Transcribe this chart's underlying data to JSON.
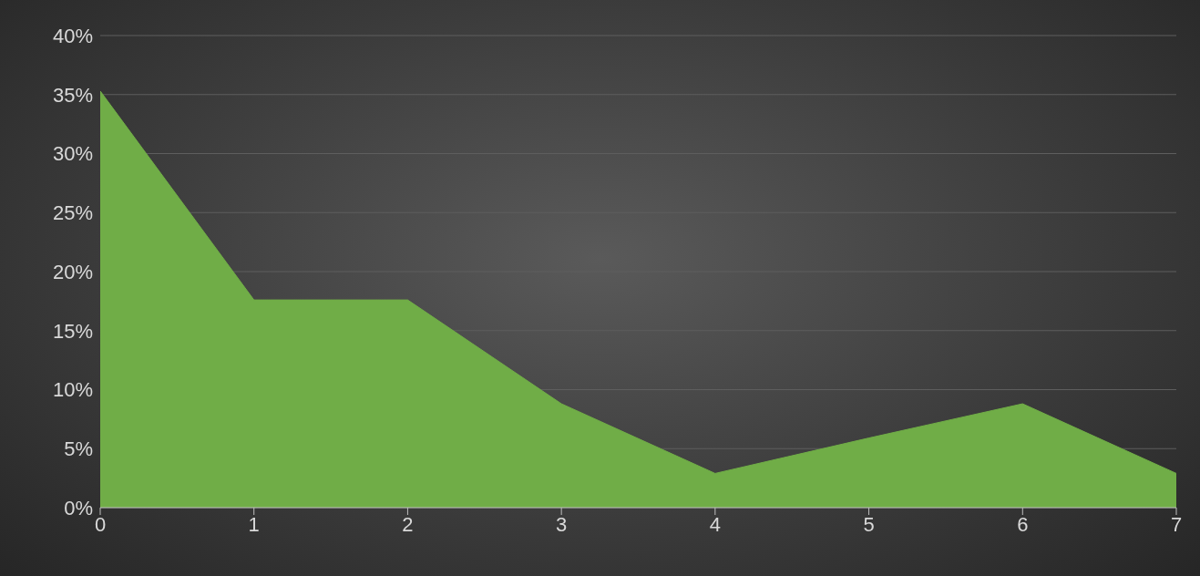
{
  "chart_data": {
    "type": "area",
    "x": [
      0,
      1,
      2,
      3,
      4,
      5,
      6,
      7
    ],
    "values": [
      35.3,
      17.6,
      17.6,
      8.8,
      2.9,
      5.9,
      8.8,
      2.9
    ],
    "color": "#70ad47",
    "xlim": [
      0,
      7
    ],
    "xticks": [
      0,
      1,
      2,
      3,
      4,
      5,
      6,
      7
    ],
    "ylim": [
      0,
      40
    ],
    "yticks": [
      {
        "value": 0,
        "label": "0%"
      },
      {
        "value": 5,
        "label": "5%"
      },
      {
        "value": 10,
        "label": "10%"
      },
      {
        "value": 15,
        "label": "15%"
      },
      {
        "value": 20,
        "label": "20%"
      },
      {
        "value": 25,
        "label": "25%"
      },
      {
        "value": 30,
        "label": "30%"
      },
      {
        "value": 35,
        "label": "35%"
      },
      {
        "value": 40,
        "label": "40%"
      }
    ],
    "grid": "y",
    "legend": false
  }
}
